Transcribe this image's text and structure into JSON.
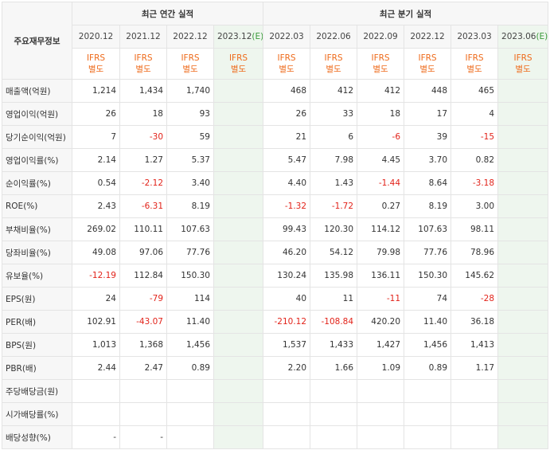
{
  "header": {
    "row_label": "주요재무정보",
    "annual_group": "최근 연간 실적",
    "quarter_group": "최근 분기 실적",
    "ifrs_top": "IFRS",
    "ifrs_bottom": "별도",
    "annual_periods": [
      {
        "label": "2020.12",
        "estimate": false,
        "mark": ""
      },
      {
        "label": "2021.12",
        "estimate": false,
        "mark": ""
      },
      {
        "label": "2022.12",
        "estimate": false,
        "mark": ""
      },
      {
        "label": "2023.12",
        "estimate": true,
        "mark": "(E)"
      }
    ],
    "quarter_periods": [
      {
        "label": "2022.03",
        "estimate": false,
        "mark": ""
      },
      {
        "label": "2022.06",
        "estimate": false,
        "mark": ""
      },
      {
        "label": "2022.09",
        "estimate": false,
        "mark": ""
      },
      {
        "label": "2022.12",
        "estimate": false,
        "mark": ""
      },
      {
        "label": "2023.03",
        "estimate": false,
        "mark": ""
      },
      {
        "label": "2023.06",
        "estimate": true,
        "mark": "(E)"
      }
    ]
  },
  "rows": [
    {
      "label": "매출액(억원)",
      "annual": [
        "1,214",
        "1,434",
        "1,740",
        ""
      ],
      "quarter": [
        "468",
        "412",
        "412",
        "448",
        "465",
        ""
      ]
    },
    {
      "label": "영업이익(억원)",
      "annual": [
        "26",
        "18",
        "93",
        ""
      ],
      "quarter": [
        "26",
        "33",
        "18",
        "17",
        "4",
        ""
      ]
    },
    {
      "label": "당기순이익(억원)",
      "annual": [
        "7",
        "-30",
        "59",
        ""
      ],
      "quarter": [
        "21",
        "6",
        "-6",
        "39",
        "-15",
        ""
      ]
    },
    {
      "label": "영업이익률(%)",
      "annual": [
        "2.14",
        "1.27",
        "5.37",
        ""
      ],
      "quarter": [
        "5.47",
        "7.98",
        "4.45",
        "3.70",
        "0.82",
        ""
      ]
    },
    {
      "label": "순이익률(%)",
      "annual": [
        "0.54",
        "-2.12",
        "3.40",
        ""
      ],
      "quarter": [
        "4.40",
        "1.43",
        "-1.44",
        "8.64",
        "-3.18",
        ""
      ]
    },
    {
      "label": "ROE(%)",
      "annual": [
        "2.43",
        "-6.31",
        "8.19",
        ""
      ],
      "quarter": [
        "-1.32",
        "-1.72",
        "0.27",
        "8.19",
        "3.00",
        ""
      ]
    },
    {
      "label": "부채비율(%)",
      "annual": [
        "269.02",
        "110.11",
        "107.63",
        ""
      ],
      "quarter": [
        "99.43",
        "120.30",
        "114.12",
        "107.63",
        "98.11",
        ""
      ]
    },
    {
      "label": "당좌비율(%)",
      "annual": [
        "49.08",
        "97.06",
        "77.76",
        ""
      ],
      "quarter": [
        "46.20",
        "54.12",
        "79.98",
        "77.76",
        "78.96",
        ""
      ]
    },
    {
      "label": "유보율(%)",
      "annual": [
        "-12.19",
        "112.84",
        "150.30",
        ""
      ],
      "quarter": [
        "130.24",
        "135.98",
        "136.11",
        "150.30",
        "145.62",
        ""
      ]
    },
    {
      "label": "EPS(원)",
      "annual": [
        "24",
        "-79",
        "114",
        ""
      ],
      "quarter": [
        "40",
        "11",
        "-11",
        "74",
        "-28",
        ""
      ]
    },
    {
      "label": "PER(배)",
      "annual": [
        "102.91",
        "-43.07",
        "11.40",
        ""
      ],
      "quarter": [
        "-210.12",
        "-108.84",
        "420.20",
        "11.40",
        "36.18",
        ""
      ]
    },
    {
      "label": "BPS(원)",
      "annual": [
        "1,013",
        "1,368",
        "1,456",
        ""
      ],
      "quarter": [
        "1,537",
        "1,433",
        "1,427",
        "1,456",
        "1,413",
        ""
      ]
    },
    {
      "label": "PBR(배)",
      "annual": [
        "2.44",
        "2.47",
        "0.89",
        ""
      ],
      "quarter": [
        "2.20",
        "1.66",
        "1.09",
        "0.89",
        "1.17",
        ""
      ]
    },
    {
      "label": "주당배당금(원)",
      "annual": [
        "",
        "",
        "",
        ""
      ],
      "quarter": [
        "",
        "",
        "",
        "",
        "",
        ""
      ]
    },
    {
      "label": "시가배당률(%)",
      "annual": [
        "",
        "",
        "",
        ""
      ],
      "quarter": [
        "",
        "",
        "",
        "",
        "",
        ""
      ]
    },
    {
      "label": "배당성향(%)",
      "annual": [
        "-",
        "-",
        "",
        ""
      ],
      "quarter": [
        "",
        "",
        "",
        "",
        "",
        ""
      ]
    }
  ],
  "colors": {
    "ifrs": "#ee6a1a",
    "negative": "#e2231a",
    "estimate_bg": "#eef6ee",
    "estimate_mark": "#3a9a3a",
    "header_bg": "#f7f7f7"
  }
}
